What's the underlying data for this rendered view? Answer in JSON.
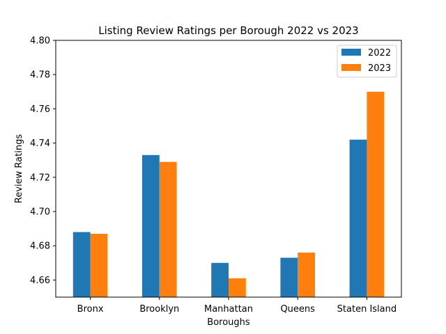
{
  "chart_data": {
    "type": "bar",
    "title": "Listing Review Ratings per Borough 2022 vs 2023",
    "xlabel": "Boroughs",
    "ylabel": "Review Ratings",
    "categories": [
      "Bronx",
      "Brooklyn",
      "Manhattan",
      "Queens",
      "Staten Island"
    ],
    "series": [
      {
        "name": "2022",
        "values": [
          4.688,
          4.733,
          4.67,
          4.673,
          4.742
        ]
      },
      {
        "name": "2023",
        "values": [
          4.687,
          4.729,
          4.661,
          4.676,
          4.77
        ]
      }
    ],
    "ylim": [
      4.65,
      4.8
    ],
    "yticks": [
      "4.66",
      "4.68",
      "4.70",
      "4.72",
      "4.74",
      "4.76",
      "4.78",
      "4.80"
    ],
    "grid": false,
    "legend_position": "top-right",
    "colors": [
      "#1f77b4",
      "#ff7f0e"
    ]
  }
}
